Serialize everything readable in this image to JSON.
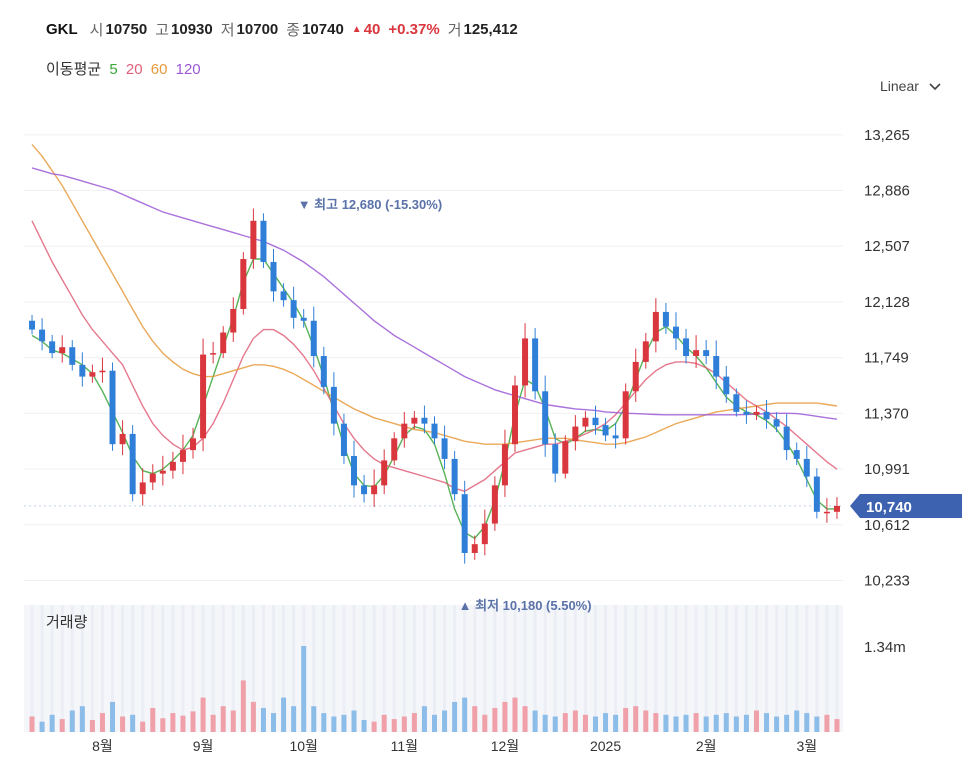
{
  "header": {
    "symbol": "GKL",
    "open_label": "시",
    "open": "10750",
    "high_label": "고",
    "high": "10930",
    "low_label": "저",
    "low": "10700",
    "close_label": "종",
    "close": "10740",
    "change": "40",
    "change_pct": "+0.37%",
    "volume_label": "거",
    "volume": "125,412",
    "up_color": "#d9363e"
  },
  "ma_legend": {
    "title": "이동평균",
    "periods": [
      {
        "label": "5",
        "color": "#3aa63a"
      },
      {
        "label": "20",
        "color": "#e0607a"
      },
      {
        "label": "60",
        "color": "#e69a3c"
      },
      {
        "label": "120",
        "color": "#9b59d6"
      }
    ]
  },
  "scale_selector": {
    "label": "Linear",
    "icon": "chevron-down-icon"
  },
  "chart_data": {
    "type": "candlestick",
    "y_ticks": [
      "13,265",
      "12,886",
      "12,507",
      "12,128",
      "11,749",
      "11,370",
      "10,991",
      "10,612",
      "10,233"
    ],
    "y_tick_values": [
      13265,
      12886,
      12507,
      12128,
      11749,
      11370,
      10991,
      10612,
      10233
    ],
    "ylim": [
      10100,
      13400
    ],
    "x_ticks": [
      "8월",
      "9월",
      "10월",
      "11월",
      "12월",
      "2025",
      "2월",
      "3월"
    ],
    "x_tick_index": [
      7,
      17,
      27,
      37,
      47,
      57,
      67,
      77
    ],
    "last_price_label": "10,740",
    "last_price": 10740,
    "high_annotation": {
      "text": "최고",
      "value": "12,680 (-15.30%)",
      "price": 12680,
      "index": 27
    },
    "low_annotation": {
      "text": "최저",
      "value": "10,180 (5.50%)",
      "price": 10180,
      "index": 43
    },
    "volume_panel_title": "거래량",
    "volume_tick": "1.34m",
    "volume_tick_value": 1340000,
    "up_color": "#d9363e",
    "down_color": "#2f7fd8",
    "closes": [
      11940,
      11860,
      11780,
      11820,
      11700,
      11620,
      11650,
      11660,
      11160,
      11230,
      10820,
      10900,
      10960,
      10980,
      11040,
      11120,
      11200,
      11770,
      11780,
      11920,
      12080,
      12420,
      12680,
      12400,
      12200,
      12140,
      12020,
      12000,
      11760,
      11550,
      11300,
      11080,
      10880,
      10820,
      10880,
      11050,
      11200,
      11300,
      11340,
      11300,
      11200,
      11060,
      10820,
      10420,
      10480,
      10620,
      10880,
      11160,
      11560,
      11880,
      11520,
      11160,
      10960,
      11180,
      11280,
      11340,
      11290,
      11220,
      11200,
      11520,
      11720,
      11860,
      12060,
      11960,
      11880,
      11760,
      11800,
      11760,
      11620,
      11500,
      11380,
      11360,
      11380,
      11330,
      11280,
      11120,
      11060,
      10940,
      10700,
      10700,
      10740
    ],
    "moving_averages": [
      {
        "period": 5,
        "color": "#3aa63a",
        "values": [
          11900,
          11860,
          11800,
          11780,
          11740,
          11700,
          11640,
          11520,
          11380,
          11240,
          11080,
          10980,
          10960,
          10990,
          11050,
          11120,
          11220,
          11420,
          11620,
          11820,
          12020,
          12260,
          12420,
          12420,
          12320,
          12220,
          12120,
          12000,
          11820,
          11620,
          11380,
          11150,
          10960,
          10880,
          10870,
          10950,
          11080,
          11220,
          11280,
          11260,
          11160,
          10960,
          10720,
          10560,
          10520,
          10600,
          10780,
          11040,
          11360,
          11600,
          11560,
          11400,
          11200,
          11160,
          11200,
          11250,
          11260,
          11250,
          11300,
          11420,
          11600,
          11780,
          11920,
          11960,
          11900,
          11820,
          11760,
          11680,
          11580,
          11480,
          11420,
          11380,
          11360,
          11320,
          11260,
          11170,
          11060,
          10920,
          10780,
          10720,
          10720
        ]
      },
      {
        "period": 20,
        "color": "#e0607a",
        "values": [
          12680,
          12540,
          12400,
          12280,
          12160,
          12040,
          11940,
          11860,
          11780,
          11700,
          11560,
          11420,
          11300,
          11220,
          11160,
          11120,
          11140,
          11200,
          11300,
          11440,
          11600,
          11760,
          11880,
          11940,
          11940,
          11900,
          11840,
          11760,
          11660,
          11540,
          11420,
          11300,
          11200,
          11120,
          11060,
          11020,
          11000,
          10980,
          10960,
          10940,
          10920,
          10900,
          10860,
          10840,
          10880,
          10920,
          10980,
          11040,
          11100,
          11120,
          11140,
          11160,
          11160,
          11180,
          11200,
          11230,
          11260,
          11300,
          11360,
          11440,
          11520,
          11600,
          11660,
          11700,
          11720,
          11720,
          11710,
          11680,
          11640,
          11580,
          11520,
          11460,
          11420,
          11380,
          11330,
          11280,
          11220,
          11160,
          11100,
          11040,
          10990
        ]
      },
      {
        "period": 60,
        "color": "#e69a3c",
        "values": [
          13200,
          13120,
          13020,
          12920,
          12800,
          12680,
          12560,
          12440,
          12320,
          12200,
          12080,
          11960,
          11860,
          11780,
          11720,
          11670,
          11640,
          11620,
          11620,
          11640,
          11660,
          11680,
          11700,
          11700,
          11690,
          11670,
          11640,
          11600,
          11560,
          11520,
          11480,
          11440,
          11400,
          11370,
          11340,
          11320,
          11300,
          11280,
          11260,
          11250,
          11240,
          11220,
          11200,
          11180,
          11170,
          11160,
          11160,
          11160,
          11170,
          11180,
          11190,
          11200,
          11200,
          11200,
          11190,
          11180,
          11170,
          11160,
          11160,
          11170,
          11190,
          11210,
          11240,
          11270,
          11300,
          11320,
          11340,
          11360,
          11380,
          11390,
          11400,
          11410,
          11420,
          11430,
          11440,
          11440,
          11440,
          11440,
          11440,
          11430,
          11420
        ]
      },
      {
        "period": 120,
        "color": "#9b59d6",
        "values": [
          13040,
          13020,
          13000,
          12990,
          12970,
          12950,
          12930,
          12910,
          12890,
          12860,
          12830,
          12800,
          12770,
          12740,
          12720,
          12700,
          12680,
          12660,
          12640,
          12620,
          12600,
          12580,
          12560,
          12540,
          12510,
          12480,
          12440,
          12400,
          12350,
          12300,
          12240,
          12180,
          12120,
          12060,
          12000,
          11950,
          11900,
          11860,
          11820,
          11780,
          11740,
          11700,
          11660,
          11620,
          11590,
          11560,
          11530,
          11510,
          11490,
          11470,
          11450,
          11430,
          11420,
          11410,
          11400,
          11395,
          11390,
          11380,
          11375,
          11370,
          11368,
          11365,
          11362,
          11360,
          11360,
          11360,
          11360,
          11360,
          11360,
          11360,
          11360,
          11362,
          11365,
          11368,
          11370,
          11370,
          11368,
          11360,
          11350,
          11340,
          11330
        ]
      }
    ],
    "volume_pattern": [
      0.18,
      0.12,
      0.2,
      0.15,
      0.25,
      0.3,
      0.14,
      0.22,
      0.35,
      0.18,
      0.2,
      0.12,
      0.28,
      0.16,
      0.22,
      0.19,
      0.24,
      0.4,
      0.2,
      0.3,
      0.25,
      0.6,
      0.35,
      0.28,
      0.22,
      0.4,
      0.3,
      1.0,
      0.3,
      0.22,
      0.18,
      0.2,
      0.25,
      0.14,
      0.12,
      0.2,
      0.15,
      0.18,
      0.22,
      0.3,
      0.2,
      0.25,
      0.35,
      0.4,
      0.3,
      0.2,
      0.28,
      0.35,
      0.4,
      0.3,
      0.25,
      0.2,
      0.18,
      0.22,
      0.25,
      0.2,
      0.18,
      0.22,
      0.2,
      0.28,
      0.3,
      0.25,
      0.22,
      0.2,
      0.18,
      0.2,
      0.22,
      0.18,
      0.2,
      0.22,
      0.18,
      0.2,
      0.25,
      0.22,
      0.18,
      0.2,
      0.25,
      0.22,
      0.18,
      0.2,
      0.15
    ]
  }
}
